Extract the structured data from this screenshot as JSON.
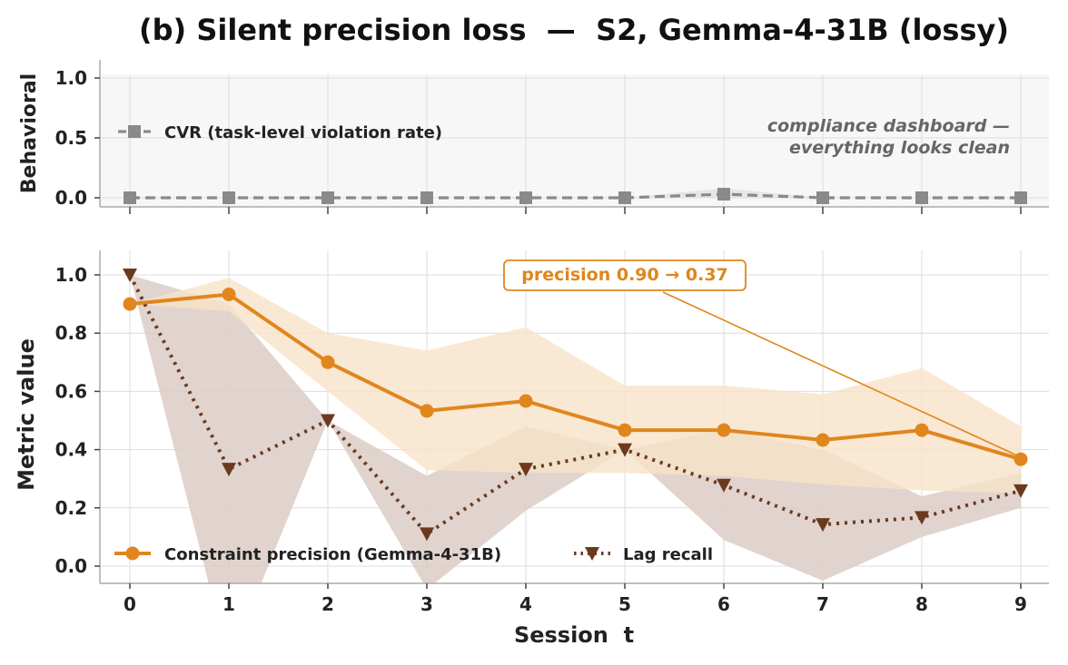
{
  "figure_title": "(b) Silent precision loss  —  S2, Gemma-4-31B (lossy)",
  "colors": {
    "precision": "#e0861d",
    "precision_band": "#f8e2c8",
    "recall": "#6b3a1e",
    "recall_band": "#dccdc6",
    "cvr": "#8a8a8a",
    "top_panel_bg": "#f7f7f7",
    "grid": "#dedede",
    "axis": "#aaaaaa",
    "text": "#222222"
  },
  "chart_data": [
    {
      "type": "line",
      "panel": "top",
      "title": "",
      "xlabel": "",
      "ylabel": "Behavioral",
      "x": [
        0,
        1,
        2,
        3,
        4,
        5,
        6,
        7,
        8,
        9
      ],
      "ylim": [
        -0.08,
        1.15
      ],
      "yticks": [
        "0.0",
        "0.5",
        "1.0"
      ],
      "grid": true,
      "legend_position": "upper-left",
      "annotation": [
        "compliance dashboard —",
        "everything looks clean"
      ],
      "series": [
        {
          "name": "CVR (task-level violation rate)",
          "values": [
            0,
            0,
            0,
            0,
            0,
            0,
            0.03,
            0,
            0,
            0
          ],
          "band_low": [
            0,
            0,
            0,
            0,
            0,
            0,
            0,
            0,
            0,
            0
          ],
          "band_high": [
            0,
            0,
            0,
            0,
            0,
            0,
            0.08,
            0,
            0,
            0
          ],
          "style": "dashed",
          "marker": "square"
        }
      ]
    },
    {
      "type": "line",
      "panel": "bottom",
      "title": "",
      "xlabel": "Session  t",
      "ylabel": "Metric value",
      "x": [
        0,
        1,
        2,
        3,
        4,
        5,
        6,
        7,
        8,
        9
      ],
      "xticks": [
        "0",
        "1",
        "2",
        "3",
        "4",
        "5",
        "6",
        "7",
        "8",
        "9"
      ],
      "ylim": [
        -0.05,
        1.08
      ],
      "yticks": [
        "0.0",
        "0.2",
        "0.4",
        "0.6",
        "0.8",
        "1.0"
      ],
      "grid": true,
      "legend_position": "lower-left",
      "annotation": "precision 0.90 → 0.37",
      "series": [
        {
          "name": "Constraint precision (Gemma-4-31B)",
          "values": [
            0.9,
            0.933,
            0.7,
            0.533,
            0.567,
            0.467,
            0.467,
            0.433,
            0.467,
            0.367
          ],
          "band_low": [
            0.9,
            0.875,
            0.6,
            0.33,
            0.32,
            0.32,
            0.31,
            0.28,
            0.26,
            0.25
          ],
          "band_high": [
            0.9,
            0.99,
            0.8,
            0.74,
            0.82,
            0.62,
            0.62,
            0.59,
            0.68,
            0.48
          ],
          "style": "solid",
          "marker": "circle"
        },
        {
          "name": "Lag recall",
          "values": [
            1.0,
            0.333,
            0.5,
            0.111,
            0.333,
            0.4,
            0.278,
            0.143,
            0.167,
            0.259
          ],
          "band_low": [
            1.0,
            -0.33,
            0.5,
            -0.08,
            0.19,
            0.4,
            0.09,
            -0.05,
            0.1,
            0.2
          ],
          "band_high": [
            1.0,
            0.9,
            0.5,
            0.31,
            0.48,
            0.4,
            0.47,
            0.4,
            0.24,
            0.32
          ],
          "style": "dotted",
          "marker": "triangle-down"
        }
      ]
    }
  ]
}
